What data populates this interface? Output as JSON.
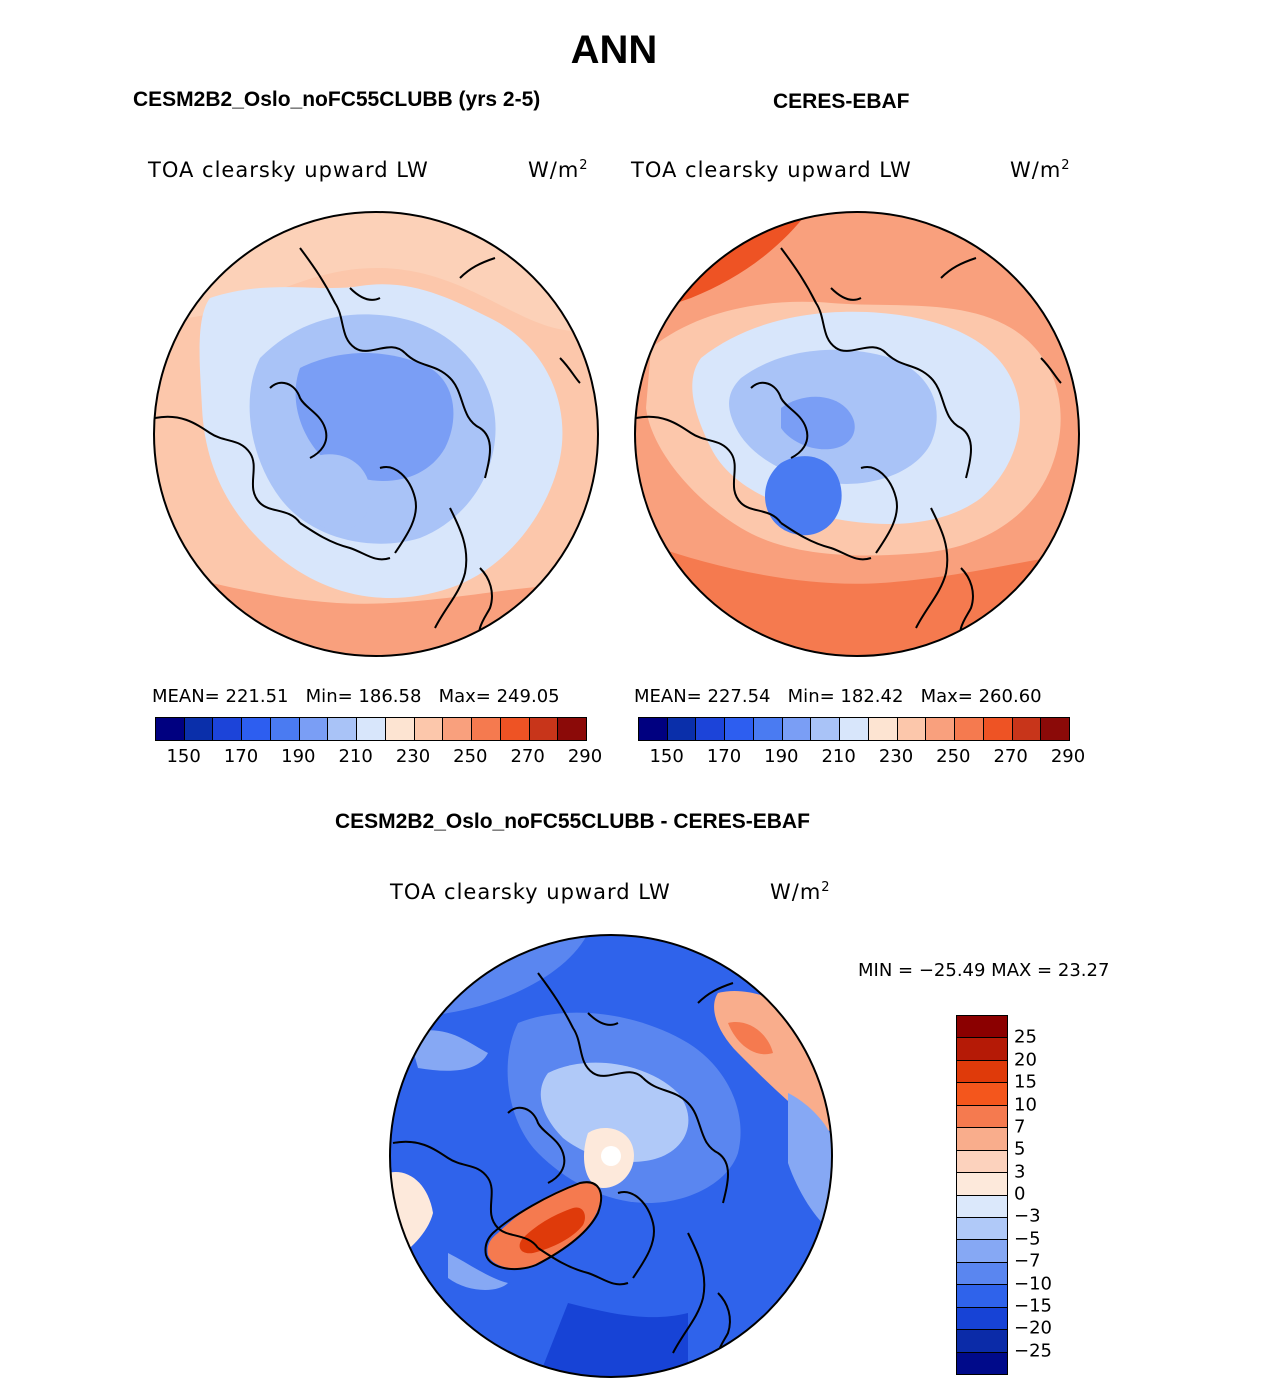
{
  "figure": {
    "title": "ANN"
  },
  "panels": {
    "model": {
      "title": "CESM2B2_Oslo_noFC55CLUBB (yrs 2-5)",
      "variable": "TOA clearsky upward LW",
      "units_base": "W/m",
      "units_exp": "2",
      "mean_label": "MEAN=",
      "mean": "221.51",
      "min_label": "Min=",
      "min": "186.58",
      "max_label": "Max=",
      "max": "249.05"
    },
    "obs": {
      "title": "CERES-EBAF",
      "variable": "TOA clearsky upward LW",
      "units_base": "W/m",
      "units_exp": "2",
      "mean_label": "MEAN=",
      "mean": "227.54",
      "min_label": "Min=",
      "min": "182.42",
      "max_label": "Max=",
      "max": "260.60"
    },
    "diff": {
      "title": "CESM2B2_Oslo_noFC55CLUBB - CERES-EBAF",
      "variable": "TOA clearsky upward LW",
      "units_base": "W/m",
      "units_exp": "2",
      "minmax_text": "MIN = −25.49 MAX =  23.27"
    }
  },
  "colorbar_abs": {
    "colors": [
      "#000080",
      "#0a2faa",
      "#1c44d9",
      "#2d5ef0",
      "#4a7bf2",
      "#7a9ef5",
      "#a9c3f7",
      "#d8e6fb",
      "#fde4d2",
      "#fcc7ab",
      "#f9a07d",
      "#f57a4f",
      "#ee5324",
      "#c8351a",
      "#8b0a08"
    ],
    "tick_labels": [
      "150",
      "170",
      "190",
      "210",
      "230",
      "250",
      "270",
      "290"
    ]
  },
  "colorbar_diff": {
    "colors": [
      "#8b0000",
      "#b51a06",
      "#df3a0a",
      "#f4561c",
      "#f57a4f",
      "#f9ad8c",
      "#fcd2bd",
      "#fde9db",
      "#dbe8fb",
      "#b0c9f8",
      "#86a8f4",
      "#5a86f0",
      "#2f63eb",
      "#1743d6",
      "#0b2ba8",
      "#000a8a"
    ],
    "tick_labels": [
      "25",
      "20",
      "15",
      "10",
      "7",
      "5",
      "3",
      "0",
      "−3",
      "−5",
      "−7",
      "−10",
      "−15",
      "−20",
      "−25"
    ]
  }
}
